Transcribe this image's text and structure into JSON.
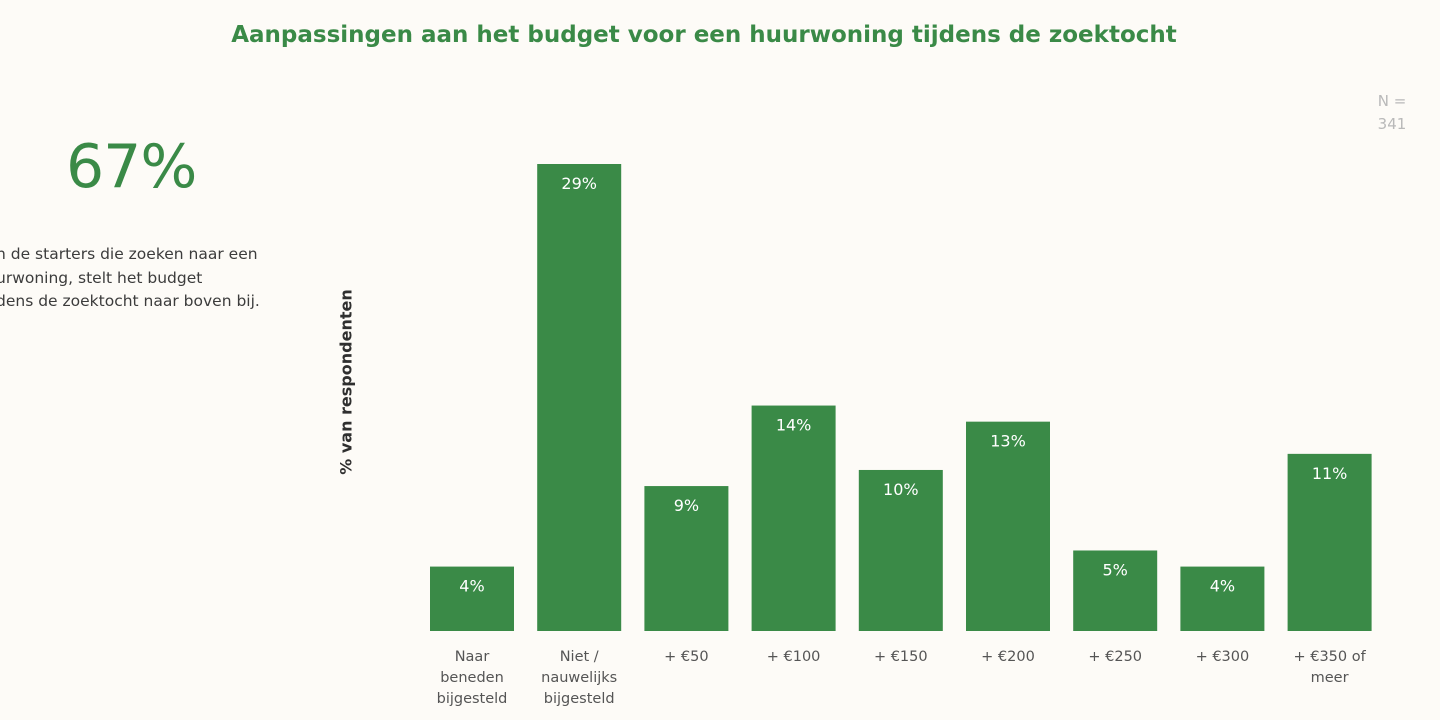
{
  "title": "Aanpassingen aan het budget voor een huurwoning tijdens de zoektocht",
  "sample_size": {
    "line1": "N =",
    "line2": "341"
  },
  "highlight": {
    "value": "67%",
    "text_lines": [
      "n de starters die zoeken naar een",
      "urwoning, stelt het budget",
      "dens de zoektocht naar boven bij."
    ]
  },
  "colors": {
    "bar": "#3a8a47",
    "accent_text": "#3a8a47",
    "background": "#fdfbf7"
  },
  "chart_data": {
    "type": "bar",
    "title": "Aanpassingen aan het budget voor een huurwoning tijdens de zoektocht",
    "xlabel": "",
    "ylabel": "% van respondenten",
    "ylim": [
      0,
      30
    ],
    "grid": false,
    "legend": "none",
    "categories": [
      [
        "Naar",
        "beneden",
        "bijgesteld"
      ],
      [
        "Niet /",
        "nauwelijks",
        "bijgesteld"
      ],
      [
        "+ €50"
      ],
      [
        "+ €100"
      ],
      [
        "+ €150"
      ],
      [
        "+ €200"
      ],
      [
        "+ €250"
      ],
      [
        "+ €300"
      ],
      [
        "+ €350 of",
        "meer"
      ]
    ],
    "values": [
      4,
      29,
      9,
      14,
      10,
      13,
      5,
      4,
      11
    ],
    "data_labels": [
      "4%",
      "29%",
      "9%",
      "14%",
      "10%",
      "13%",
      "5%",
      "4%",
      "11%"
    ]
  }
}
